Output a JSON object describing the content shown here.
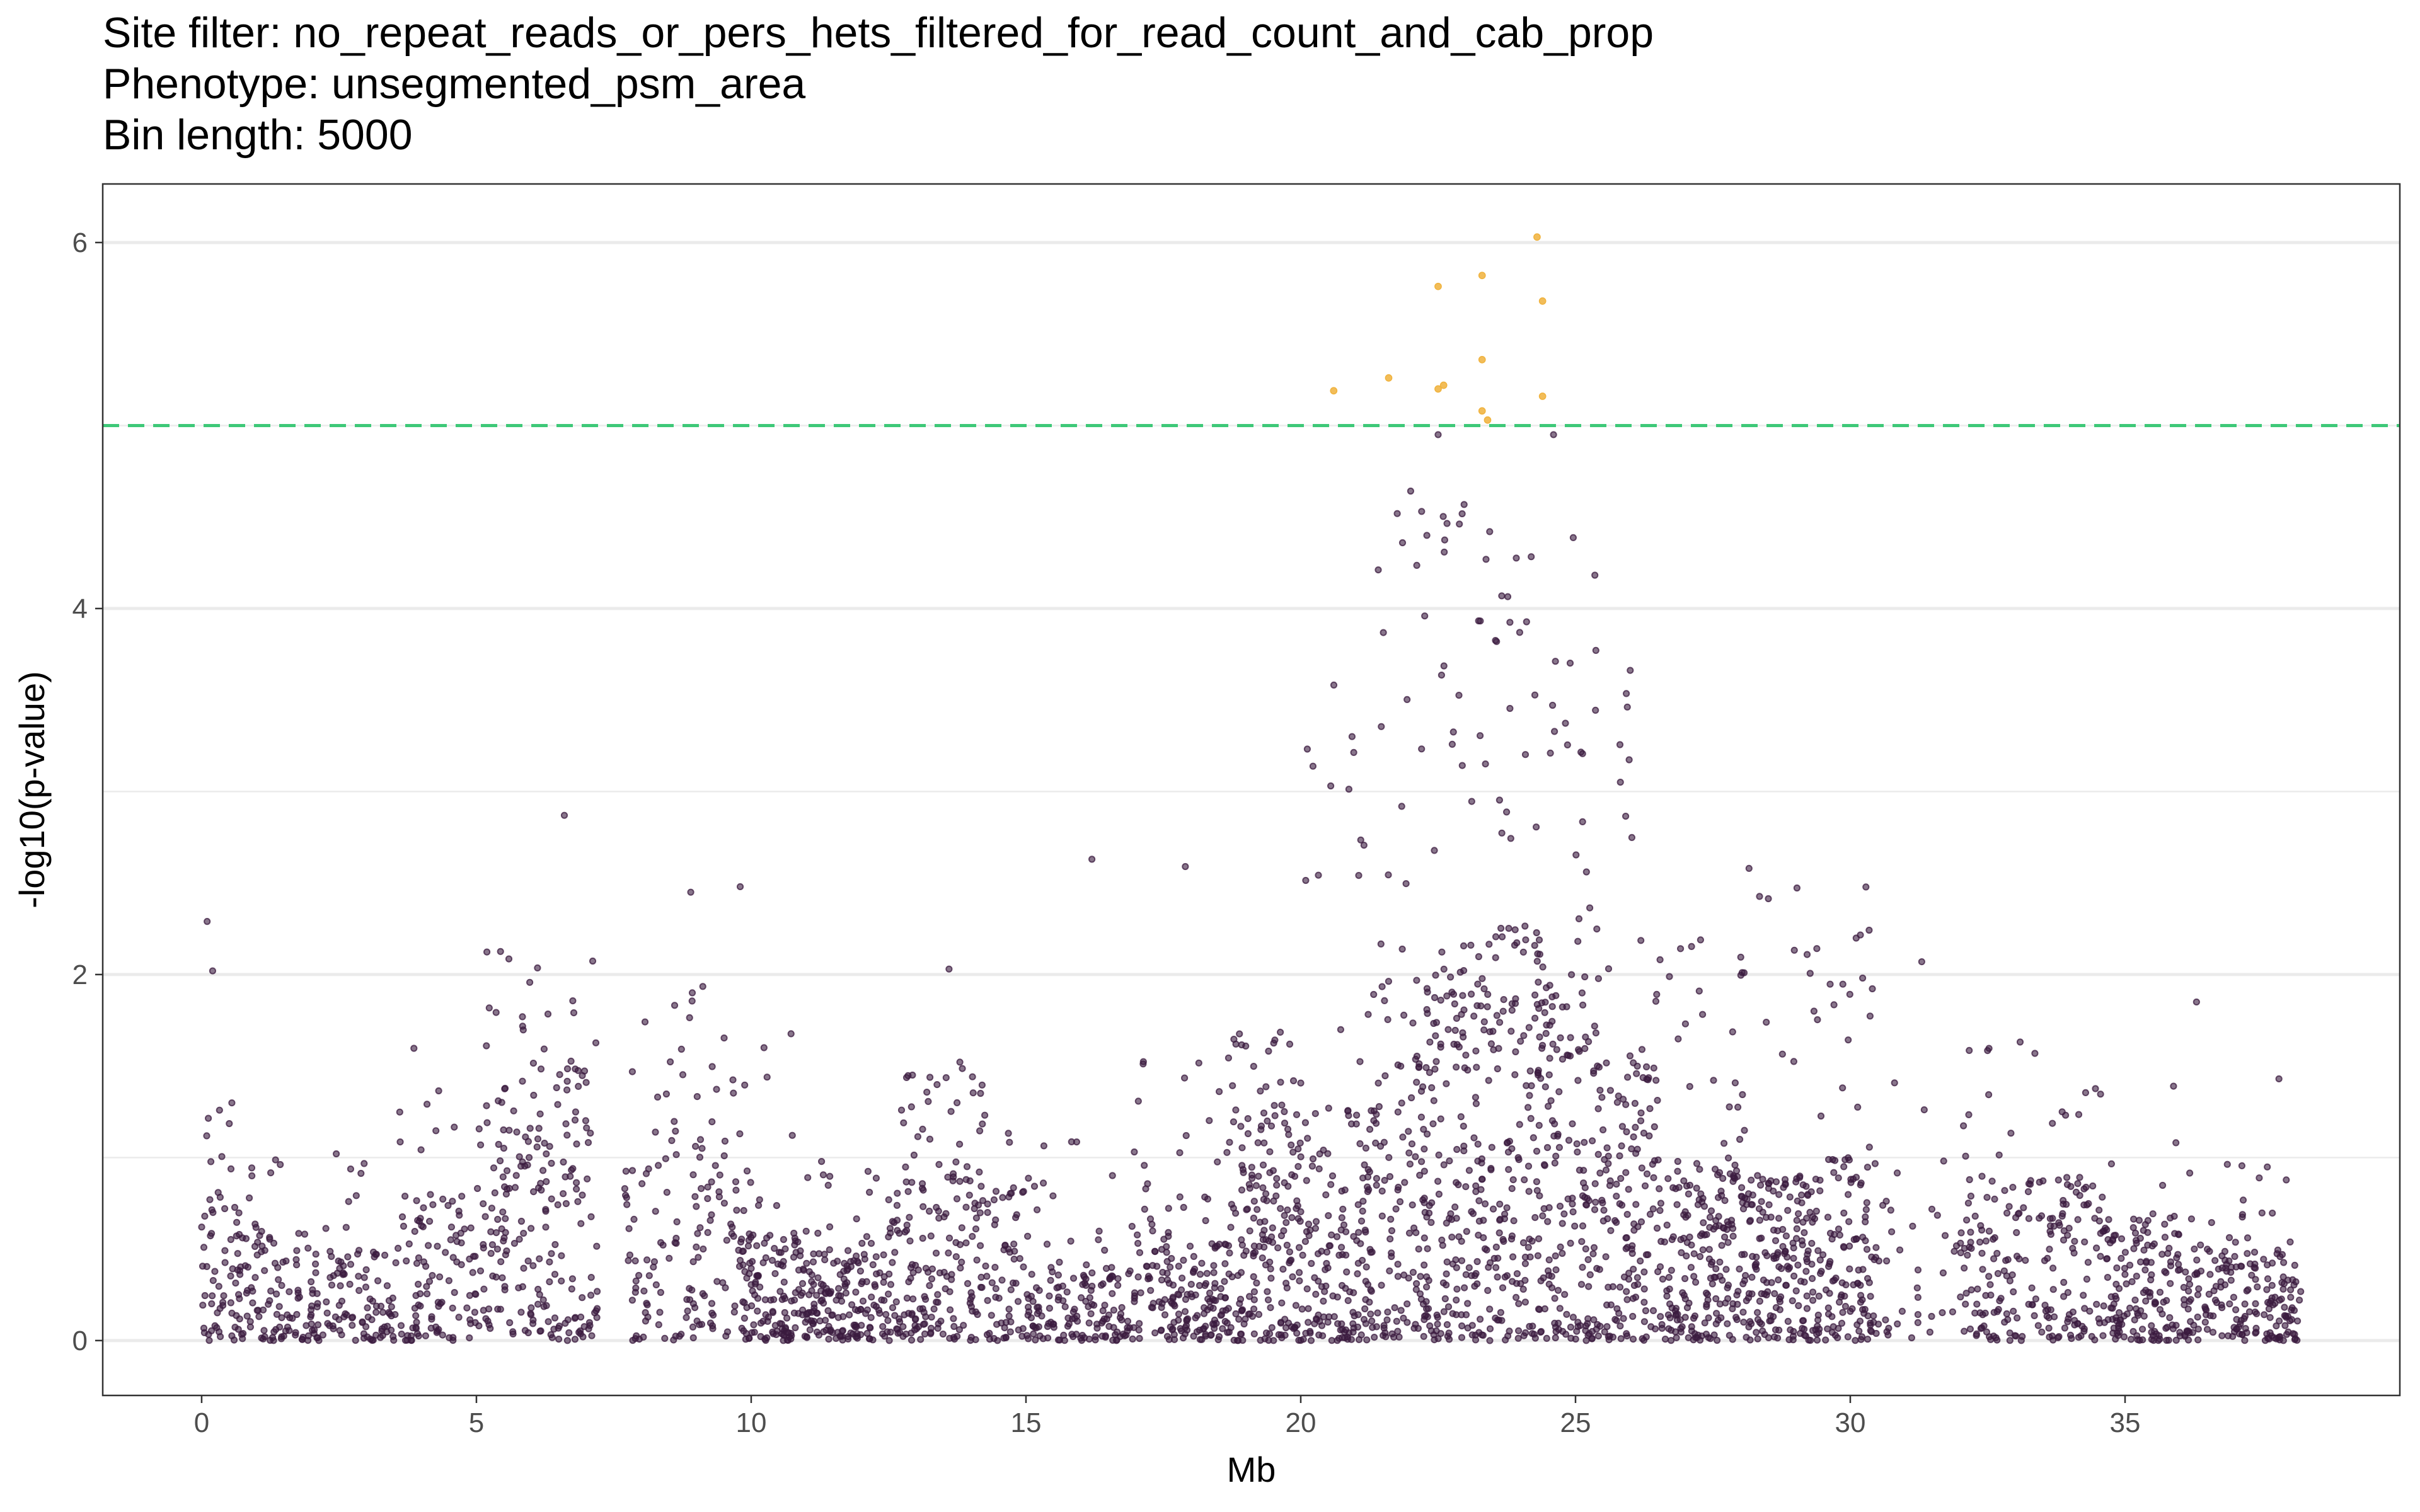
{
  "title_lines": [
    "Site filter: no_repeat_reads_or_pers_hets_filtered_for_read_count_and_cab_prop",
    "Phenotype: unsegmented_psm_area",
    "Bin length: 5000"
  ],
  "colors": {
    "point_below": "#3b1b3f",
    "point_above": "#f0b23c",
    "threshold": "#3ec878",
    "grid": "#ebebeb",
    "panel_border": "#333333"
  },
  "chart_data": {
    "type": "scatter",
    "xlabel": "Mb",
    "ylabel": "-log10(p-value)",
    "xlim": [
      -1.8,
      40.0
    ],
    "ylim": [
      -0.3,
      6.32
    ],
    "x_ticks": [
      0,
      5,
      10,
      15,
      20,
      25,
      30,
      35
    ],
    "y_ticks": [
      0,
      2,
      4,
      6
    ],
    "threshold": 5.0,
    "grid": "horizontal",
    "significant_points": [
      {
        "x": 20.6,
        "y": 5.19
      },
      {
        "x": 21.6,
        "y": 5.26
      },
      {
        "x": 22.5,
        "y": 5.76
      },
      {
        "x": 22.5,
        "y": 5.2
      },
      {
        "x": 22.6,
        "y": 5.22
      },
      {
        "x": 23.3,
        "y": 5.82
      },
      {
        "x": 23.3,
        "y": 5.36
      },
      {
        "x": 23.3,
        "y": 5.08
      },
      {
        "x": 23.4,
        "y": 5.03
      },
      {
        "x": 24.3,
        "y": 6.03
      },
      {
        "x": 24.4,
        "y": 5.68
      },
      {
        "x": 24.4,
        "y": 5.16
      }
    ],
    "notable_points": [
      {
        "x": 0.1,
        "y": 2.29
      },
      {
        "x": 0.2,
        "y": 2.02
      },
      {
        "x": 6.6,
        "y": 2.87
      },
      {
        "x": 9.8,
        "y": 2.48
      },
      {
        "x": 8.9,
        "y": 2.45
      },
      {
        "x": 16.2,
        "y": 2.63
      },
      {
        "x": 17.9,
        "y": 2.59
      },
      {
        "x": 13.6,
        "y": 2.03
      },
      {
        "x": 31.3,
        "y": 2.07
      },
      {
        "x": 36.3,
        "y": 1.85
      },
      {
        "x": 37.8,
        "y": 1.43
      },
      {
        "x": 22.5,
        "y": 4.95
      },
      {
        "x": 24.6,
        "y": 4.95
      }
    ],
    "density_profile": [
      {
        "x0": 0.0,
        "x1": 1.0,
        "n": 90,
        "bulk_max": 0.75,
        "tail_max": 1.3
      },
      {
        "x0": 1.0,
        "x1": 2.0,
        "n": 75,
        "bulk_max": 0.6,
        "tail_max": 1.05
      },
      {
        "x0": 2.0,
        "x1": 3.5,
        "n": 110,
        "bulk_max": 0.5,
        "tail_max": 1.05
      },
      {
        "x0": 3.5,
        "x1": 5.0,
        "n": 110,
        "bulk_max": 0.8,
        "tail_max": 1.65
      },
      {
        "x0": 5.0,
        "x1": 6.0,
        "n": 100,
        "bulk_max": 1.4,
        "tail_max": 2.15
      },
      {
        "x0": 6.0,
        "x1": 7.2,
        "n": 120,
        "bulk_max": 1.5,
        "tail_max": 2.2
      },
      {
        "x0": 7.7,
        "x1": 8.6,
        "n": 55,
        "bulk_max": 1.3,
        "tail_max": 1.8
      },
      {
        "x0": 8.6,
        "x1": 9.8,
        "n": 90,
        "bulk_max": 1.2,
        "tail_max": 1.95
      },
      {
        "x0": 9.8,
        "x1": 11.0,
        "n": 140,
        "bulk_max": 0.6,
        "tail_max": 1.7
      },
      {
        "x0": 11.0,
        "x1": 12.5,
        "n": 170,
        "bulk_max": 0.5,
        "tail_max": 1.0
      },
      {
        "x0": 12.5,
        "x1": 14.0,
        "n": 160,
        "bulk_max": 0.9,
        "tail_max": 1.55
      },
      {
        "x0": 14.0,
        "x1": 15.0,
        "n": 90,
        "bulk_max": 0.9,
        "tail_max": 1.5
      },
      {
        "x0": 15.0,
        "x1": 17.0,
        "n": 160,
        "bulk_max": 0.4,
        "tail_max": 1.15
      },
      {
        "x0": 17.0,
        "x1": 18.7,
        "n": 180,
        "bulk_max": 0.6,
        "tail_max": 1.55
      },
      {
        "x0": 18.7,
        "x1": 20.0,
        "n": 190,
        "bulk_max": 1.3,
        "tail_max": 1.7
      },
      {
        "x0": 20.0,
        "x1": 21.3,
        "n": 170,
        "bulk_max": 1.3,
        "tail_max": 3.6
      },
      {
        "x0": 21.3,
        "x1": 22.5,
        "n": 170,
        "bulk_max": 2.0,
        "tail_max": 4.7
      },
      {
        "x0": 22.5,
        "x1": 23.5,
        "n": 170,
        "bulk_max": 2.2,
        "tail_max": 4.6
      },
      {
        "x0": 23.5,
        "x1": 24.5,
        "n": 170,
        "bulk_max": 2.3,
        "tail_max": 4.5
      },
      {
        "x0": 24.5,
        "x1": 25.5,
        "n": 160,
        "bulk_max": 2.0,
        "tail_max": 4.4
      },
      {
        "x0": 25.5,
        "x1": 26.5,
        "n": 140,
        "bulk_max": 1.6,
        "tail_max": 3.9
      },
      {
        "x0": 26.5,
        "x1": 28.0,
        "n": 200,
        "bulk_max": 1.0,
        "tail_max": 2.25
      },
      {
        "x0": 28.0,
        "x1": 29.5,
        "n": 220,
        "bulk_max": 0.9,
        "tail_max": 2.6
      },
      {
        "x0": 29.5,
        "x1": 30.5,
        "n": 120,
        "bulk_max": 1.0,
        "tail_max": 2.5
      },
      {
        "x0": 30.5,
        "x1": 32.0,
        "n": 35,
        "bulk_max": 0.8,
        "tail_max": 1.5
      },
      {
        "x0": 32.0,
        "x1": 33.5,
        "n": 120,
        "bulk_max": 0.9,
        "tail_max": 1.65
      },
      {
        "x0": 33.5,
        "x1": 34.6,
        "n": 100,
        "bulk_max": 0.9,
        "tail_max": 1.4
      },
      {
        "x0": 34.6,
        "x1": 36.0,
        "n": 150,
        "bulk_max": 0.7,
        "tail_max": 1.65
      },
      {
        "x0": 36.0,
        "x1": 38.2,
        "n": 200,
        "bulk_max": 0.5,
        "tail_max": 1.0
      }
    ]
  }
}
